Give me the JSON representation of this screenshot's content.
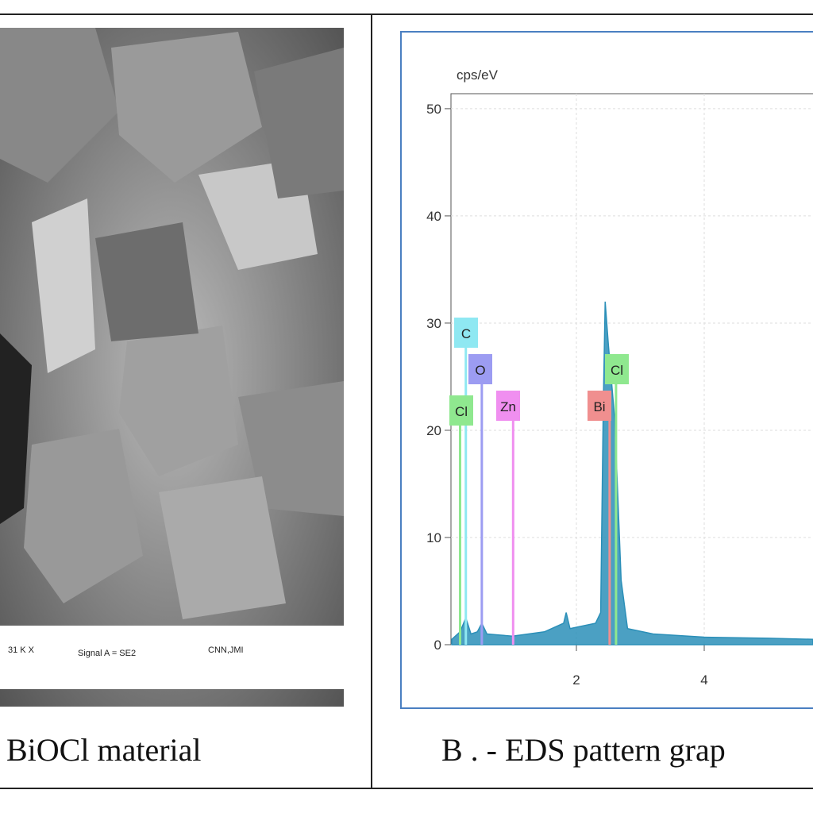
{
  "panel_a": {
    "info_bar": {
      "magnification": "31 K X",
      "signal": "Signal A = SE2",
      "operator": "CNN,JMI"
    },
    "caption": "BiOCl material"
  },
  "panel_b": {
    "caption": "B . - EDS pattern grap"
  },
  "chart_data": {
    "type": "area",
    "y_label": "cps/eV",
    "color": "#2b8fb8",
    "grid": true,
    "x": [
      0.05,
      0.18,
      0.27,
      0.35,
      0.45,
      0.52,
      0.6,
      0.8,
      1.0,
      1.5,
      1.8,
      1.84,
      1.9,
      2.3,
      2.38,
      2.42,
      2.45,
      2.5,
      2.6,
      2.7,
      2.8,
      3.2,
      4.0,
      5.0,
      5.7
    ],
    "values": [
      0.5,
      1.2,
      2.5,
      1.0,
      1.2,
      2.0,
      1.0,
      0.9,
      0.8,
      1.2,
      2.0,
      3.0,
      1.5,
      2.0,
      3.0,
      22,
      32,
      28,
      21,
      6,
      1.5,
      1.0,
      0.7,
      0.6,
      0.5
    ],
    "xlim": [
      0,
      5.7
    ],
    "ylim": [
      0,
      51.4
    ],
    "xticks": [
      2,
      4
    ],
    "yticks": [
      0,
      10,
      20,
      30,
      40,
      50
    ],
    "elements": [
      {
        "label": "C",
        "energy": 0.27,
        "color": "#8fe8f2"
      },
      {
        "label": "O",
        "energy": 0.52,
        "color": "#9c9cf2"
      },
      {
        "label": "Cl",
        "energy": 0.18,
        "color": "#8fe88f"
      },
      {
        "label": "Zn",
        "energy": 1.01,
        "color": "#f08ff0"
      },
      {
        "label": "Bi",
        "energy": 2.52,
        "color": "#f08f8f"
      },
      {
        "label": "Cl",
        "energy": 2.62,
        "color": "#8fe88f"
      }
    ]
  }
}
